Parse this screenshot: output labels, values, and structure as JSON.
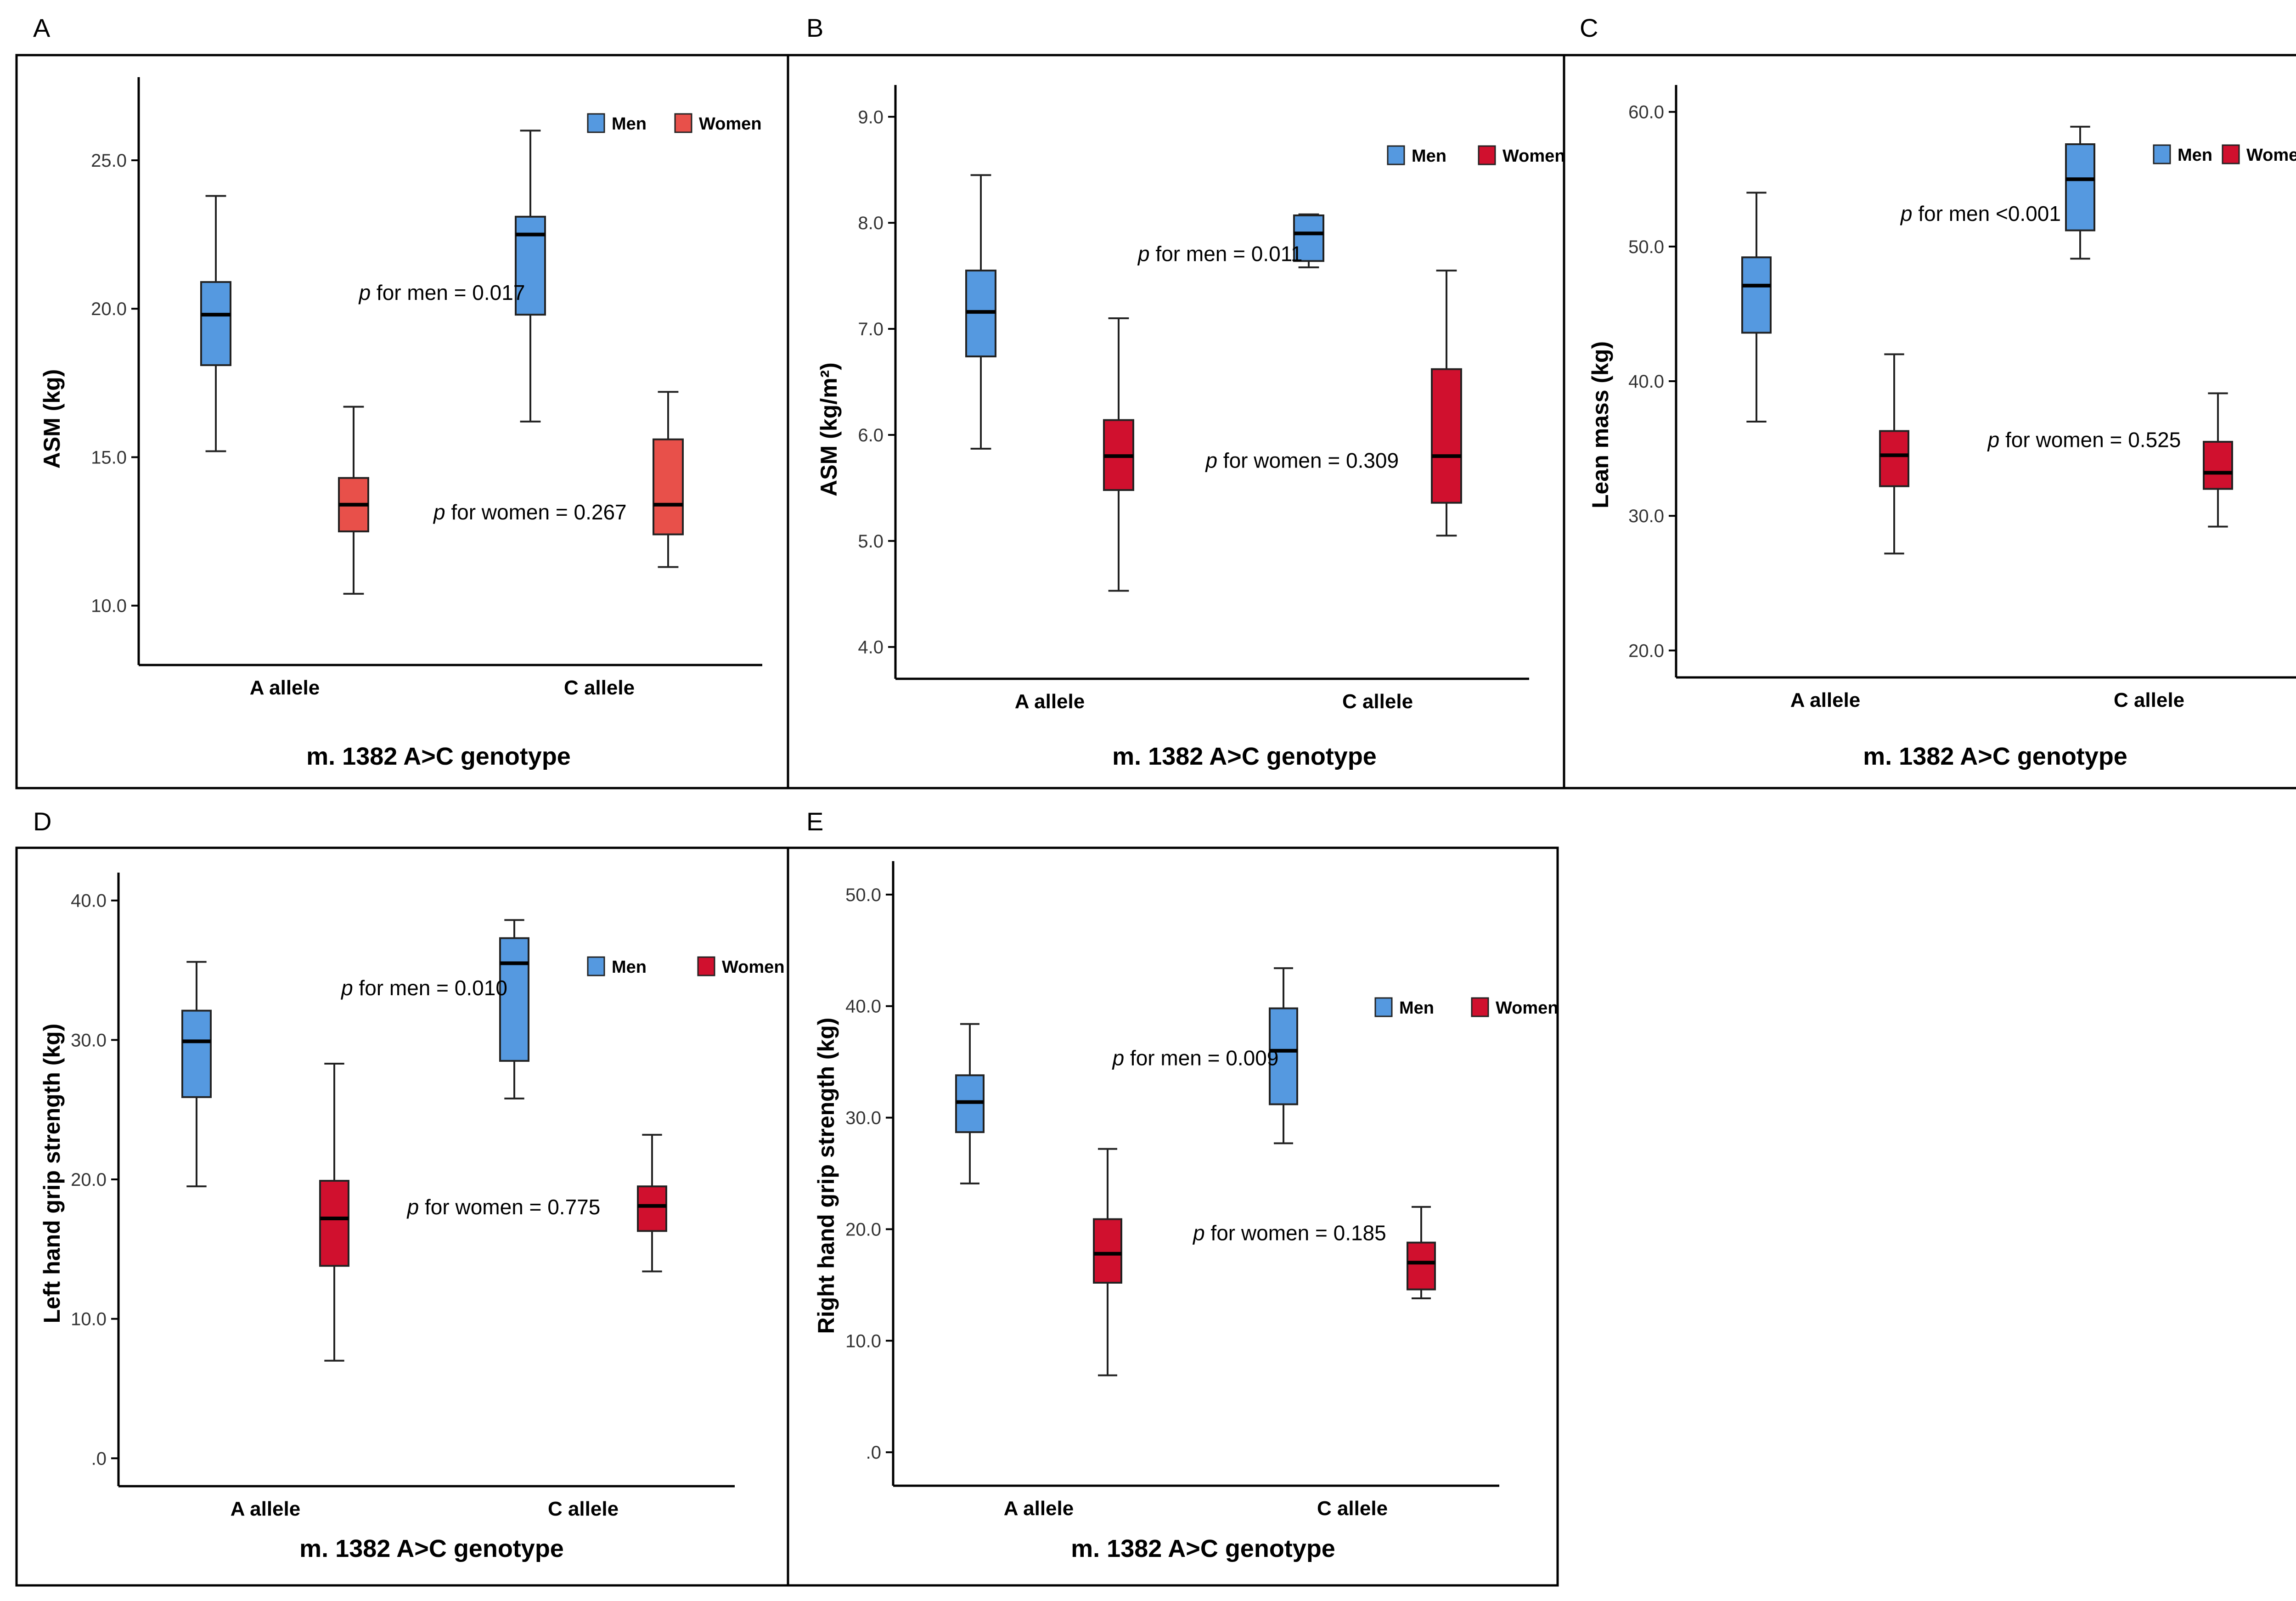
{
  "chart_data": [
    {
      "type": "box",
      "panel_label": "A",
      "ylabel": "ASM (kg)",
      "xlabel": "m. 1382 A>C genotype",
      "categories": [
        "A allele",
        "C allele"
      ],
      "ylim": [
        8.0,
        27.8
      ],
      "yticks": [
        10.0,
        15.0,
        20.0,
        25.0
      ],
      "ytick_labels": [
        "10.0",
        "15.0",
        "20.0",
        "25.0"
      ],
      "legend": [
        {
          "name": "Men",
          "color": "#5599e0"
        },
        {
          "name": "Women",
          "color": "#e8504a"
        }
      ],
      "series": [
        {
          "name": "Men",
          "color": "#5599e0",
          "boxes": [
            {
              "category": "A allele",
              "min": 15.2,
              "q1": 18.1,
              "median": 19.8,
              "q3": 20.9,
              "max": 23.8
            },
            {
              "category": "C allele",
              "min": 16.2,
              "q1": 19.8,
              "median": 22.5,
              "q3": 23.1,
              "max": 26.0
            }
          ]
        },
        {
          "name": "Women",
          "color": "#e8504a",
          "boxes": [
            {
              "category": "A allele",
              "min": 10.4,
              "q1": 12.5,
              "median": 13.4,
              "q3": 14.3,
              "max": 16.7
            },
            {
              "category": "C allele",
              "min": 11.3,
              "q1": 12.4,
              "median": 13.4,
              "q3": 15.6,
              "max": 17.2
            }
          ]
        }
      ],
      "annotations": [
        {
          "label": "p",
          "text": " for men = 0.017",
          "x": 1.5,
          "y": 20.3
        },
        {
          "label": "p",
          "text": " for women = 0.267",
          "x": 1.78,
          "y": 12.9
        }
      ]
    },
    {
      "type": "box",
      "panel_label": "B",
      "ylabel": "ASM (kg/m²)",
      "xlabel": "m. 1382 A>C genotype",
      "categories": [
        "A allele",
        "C allele"
      ],
      "ylim": [
        3.7,
        9.3
      ],
      "yticks": [
        4.0,
        5.0,
        6.0,
        7.0,
        8.0,
        9.0
      ],
      "ytick_labels": [
        "4.0",
        "5.0",
        "6.0",
        "7.0",
        "8.0",
        "9.0"
      ],
      "legend": [
        {
          "name": "Men",
          "color": "#5599e0"
        },
        {
          "name": "Women",
          "color": "#d0102e"
        }
      ],
      "series": [
        {
          "name": "Men",
          "color": "#5599e0",
          "boxes": [
            {
              "category": "A allele",
              "min": 5.87,
              "q1": 6.74,
              "median": 7.16,
              "q3": 7.55,
              "max": 8.45
            },
            {
              "category": "C allele",
              "min": 7.58,
              "q1": 7.64,
              "median": 7.9,
              "q3": 8.07,
              "max": 8.08
            }
          ]
        },
        {
          "name": "Women",
          "color": "#d0102e",
          "boxes": [
            {
              "category": "A allele",
              "min": 4.53,
              "q1": 5.48,
              "median": 5.8,
              "q3": 6.14,
              "max": 7.1
            },
            {
              "category": "C allele",
              "min": 5.05,
              "q1": 5.36,
              "median": 5.8,
              "q3": 6.62,
              "max": 7.55
            }
          ]
        }
      ],
      "annotations": [
        {
          "label": "p",
          "text": " for men = 0.011",
          "x": 1.52,
          "y": 7.64
        },
        {
          "label": "p",
          "text": " for women = 0.309",
          "x": 1.77,
          "y": 5.69
        }
      ]
    },
    {
      "type": "box",
      "panel_label": "C",
      "ylabel": "Lean mass (kg)",
      "xlabel": "m. 1382 A>C genotype",
      "categories": [
        "A allele",
        "C allele"
      ],
      "ylim": [
        18.0,
        62.0
      ],
      "yticks": [
        20.0,
        30.0,
        40.0,
        50.0,
        60.0
      ],
      "ytick_labels": [
        "20.0",
        "30.0",
        "40.0",
        "50.0",
        "60.0"
      ],
      "legend": [
        {
          "name": "Men",
          "color": "#5599e0"
        },
        {
          "name": "Women",
          "color": "#d0102e"
        }
      ],
      "series": [
        {
          "name": "Men",
          "color": "#5599e0",
          "boxes": [
            {
              "category": "A allele",
              "min": 37.0,
              "q1": 43.6,
              "median": 47.1,
              "q3": 49.2,
              "max": 54.0
            },
            {
              "category": "C allele",
              "min": 49.1,
              "q1": 51.2,
              "median": 55.0,
              "q3": 57.6,
              "max": 58.9
            }
          ]
        },
        {
          "name": "Women",
          "color": "#d0102e",
          "boxes": [
            {
              "category": "A allele",
              "min": 27.2,
              "q1": 32.2,
              "median": 34.5,
              "q3": 36.3,
              "max": 42.0
            },
            {
              "category": "C allele",
              "min": 29.2,
              "q1": 32.0,
              "median": 33.2,
              "q3": 35.5,
              "max": 39.1
            }
          ]
        }
      ],
      "annotations": [
        {
          "label": "p",
          "text": " for men <0.001",
          "x": 1.48,
          "y": 51.9
        },
        {
          "label": "p",
          "text": " for women = 0.525",
          "x": 1.8,
          "y": 35.1
        }
      ]
    },
    {
      "type": "box",
      "panel_label": "D",
      "ylabel": "Left hand grip strength (kg)",
      "xlabel": "m. 1382 A>C genotype",
      "categories": [
        "A allele",
        "C allele"
      ],
      "ylim": [
        -2.0,
        42.0
      ],
      "yticks": [
        0,
        10.0,
        20.0,
        30.0,
        40.0
      ],
      "ytick_labels": [
        ".0",
        "10.0",
        "20.0",
        "30.0",
        "40.0"
      ],
      "legend": [
        {
          "name": "Men",
          "color": "#5599e0"
        },
        {
          "name": "Women",
          "color": "#d0102e"
        }
      ],
      "series": [
        {
          "name": "Men",
          "color": "#5599e0",
          "boxes": [
            {
              "category": "A allele",
              "min": 19.5,
              "q1": 25.9,
              "median": 29.9,
              "q3": 32.1,
              "max": 35.6
            },
            {
              "category": "C allele",
              "min": 25.8,
              "q1": 28.5,
              "median": 35.5,
              "q3": 37.3,
              "max": 38.6
            }
          ]
        },
        {
          "name": "Women",
          "color": "#d0102e",
          "boxes": [
            {
              "category": "A allele",
              "min": 7.0,
              "q1": 13.8,
              "median": 17.2,
              "q3": 19.9,
              "max": 28.3
            },
            {
              "category": "C allele",
              "min": 13.4,
              "q1": 16.3,
              "median": 18.1,
              "q3": 19.5,
              "max": 23.2
            }
          ]
        }
      ],
      "annotations": [
        {
          "label": "p",
          "text": " for men = 0.010",
          "x": 1.5,
          "y": 33.2
        },
        {
          "label": "p",
          "text": " for women = 0.775",
          "x": 1.75,
          "y": 17.5
        }
      ]
    },
    {
      "type": "box",
      "panel_label": "E",
      "ylabel": "Right hand grip strength (kg)",
      "xlabel": "m. 1382 A>C genotype",
      "categories": [
        "A allele",
        "C allele"
      ],
      "ylim": [
        -3.0,
        53.0
      ],
      "yticks": [
        0,
        10.0,
        20.0,
        30.0,
        40.0,
        50.0
      ],
      "ytick_labels": [
        ".0",
        "10.0",
        "20.0",
        "30.0",
        "40.0",
        "50.0"
      ],
      "legend": [
        {
          "name": "Men",
          "color": "#5599e0"
        },
        {
          "name": "Women",
          "color": "#d0102e"
        }
      ],
      "series": [
        {
          "name": "Men",
          "color": "#5599e0",
          "boxes": [
            {
              "category": "A allele",
              "min": 24.1,
              "q1": 28.7,
              "median": 31.4,
              "q3": 33.8,
              "max": 38.4
            },
            {
              "category": "C allele",
              "min": 27.7,
              "q1": 31.2,
              "median": 36.0,
              "q3": 39.8,
              "max": 43.4
            }
          ]
        },
        {
          "name": "Women",
          "color": "#d0102e",
          "boxes": [
            {
              "category": "A allele",
              "min": 6.9,
              "q1": 15.2,
              "median": 17.8,
              "q3": 20.9,
              "max": 27.2
            },
            {
              "category": "C allele",
              "min": 13.8,
              "q1": 14.6,
              "median": 17.0,
              "q3": 18.8,
              "max": 22.0
            }
          ]
        }
      ],
      "annotations": [
        {
          "label": "p",
          "text": " for men = 0.009",
          "x": 1.5,
          "y": 34.7
        },
        {
          "label": "p",
          "text": " for women = 0.185",
          "x": 1.8,
          "y": 19.0
        }
      ]
    }
  ]
}
